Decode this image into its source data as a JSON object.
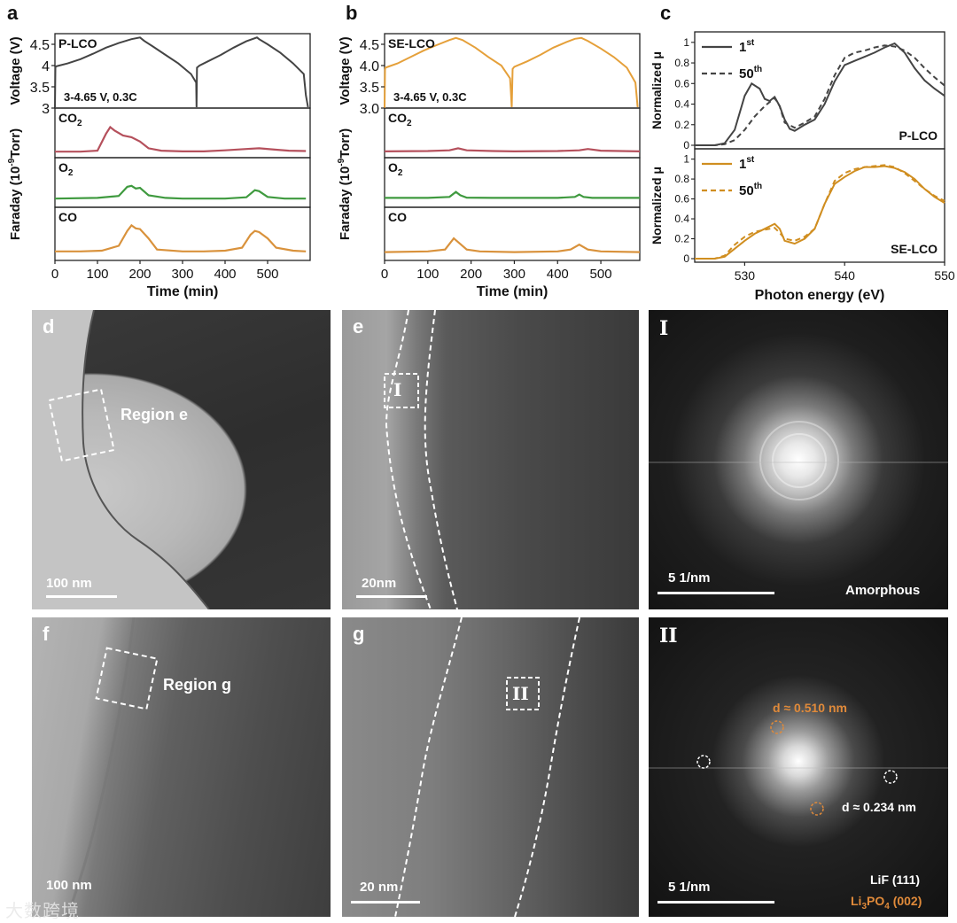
{
  "figure": {
    "panel_labels": [
      "a",
      "b",
      "c",
      "d",
      "e",
      "f",
      "g"
    ],
    "watermark": "大数跨境"
  },
  "colors": {
    "co2": "#b5505c",
    "o2": "#3f9a3f",
    "co": "#d9923c",
    "plco": "#444444",
    "selco": "#e5a03a",
    "xas_se": "#d08e20"
  },
  "chart_data": [
    {
      "id": "a",
      "type": "line",
      "sample_label": "P-LCO",
      "condition": "3-4.65 V, 0.3C",
      "xlabel": "Time (min)",
      "x_ticks": [
        "0",
        "100",
        "200",
        "300",
        "400",
        "500"
      ],
      "xlim": [
        0,
        600
      ],
      "voltage": {
        "ylabel": "Voltage (V)",
        "y_ticks": [
          "4.5",
          "4",
          "3.5",
          "3"
        ],
        "ylim": [
          3.0,
          4.75
        ],
        "x": [
          0,
          1,
          2,
          10,
          30,
          60,
          90,
          120,
          150,
          180,
          200,
          210,
          230,
          260,
          290,
          320,
          332,
          333,
          334,
          340,
          360,
          390,
          420,
          450,
          475,
          480,
          500,
          530,
          560,
          585,
          590,
          595
        ],
        "y": [
          3.0,
          3.95,
          3.98,
          4.0,
          4.05,
          4.15,
          4.28,
          4.42,
          4.53,
          4.62,
          4.66,
          4.58,
          4.45,
          4.25,
          4.05,
          3.8,
          3.6,
          3.02,
          3.95,
          4.0,
          4.1,
          4.25,
          4.42,
          4.57,
          4.66,
          4.62,
          4.5,
          4.3,
          4.05,
          3.8,
          3.3,
          3.02
        ]
      },
      "gas_ylabel": "Faraday (10-9Torr)",
      "series": [
        {
          "name": "CO2",
          "x": [
            0,
            60,
            100,
            120,
            130,
            140,
            160,
            180,
            200,
            220,
            250,
            300,
            350,
            400,
            450,
            480,
            520,
            550,
            590
          ],
          "y": [
            0.02,
            0.02,
            0.05,
            0.55,
            0.75,
            0.65,
            0.5,
            0.45,
            0.32,
            0.12,
            0.05,
            0.03,
            0.03,
            0.06,
            0.1,
            0.12,
            0.08,
            0.05,
            0.04
          ]
        },
        {
          "name": "O2",
          "x": [
            0,
            100,
            150,
            170,
            180,
            190,
            200,
            220,
            260,
            300,
            350,
            400,
            450,
            470,
            480,
            500,
            540,
            590
          ],
          "y": [
            0.1,
            0.12,
            0.18,
            0.45,
            0.48,
            0.4,
            0.42,
            0.2,
            0.12,
            0.1,
            0.1,
            0.1,
            0.14,
            0.35,
            0.32,
            0.15,
            0.1,
            0.1
          ]
        },
        {
          "name": "CO",
          "x": [
            0,
            60,
            110,
            150,
            170,
            180,
            190,
            200,
            220,
            240,
            300,
            350,
            400,
            440,
            460,
            470,
            480,
            500,
            520,
            560,
            590
          ],
          "y": [
            0.1,
            0.1,
            0.12,
            0.25,
            0.65,
            0.8,
            0.72,
            0.7,
            0.45,
            0.15,
            0.1,
            0.1,
            0.12,
            0.2,
            0.55,
            0.65,
            0.62,
            0.45,
            0.2,
            0.12,
            0.1
          ]
        }
      ],
      "series_labels": {
        "CO2": "CO",
        "CO2_sub": "2",
        "O2": "O",
        "O2_sub": "2",
        "CO": "CO"
      }
    },
    {
      "id": "b",
      "type": "line",
      "sample_label": "SE-LCO",
      "condition": "3-4.65 V, 0.3C",
      "xlabel": "Time (min)",
      "x_ticks": [
        "0",
        "100",
        "200",
        "300",
        "400",
        "500"
      ],
      "xlim": [
        0,
        590
      ],
      "voltage": {
        "ylabel": "Voltage (V)",
        "y_ticks": [
          "4.5",
          "4.0",
          "3.5",
          "3.0"
        ],
        "ylim": [
          3.0,
          4.75
        ],
        "x": [
          0,
          1,
          2,
          10,
          30,
          60,
          90,
          120,
          150,
          165,
          180,
          210,
          240,
          270,
          290,
          292,
          294,
          296,
          300,
          330,
          360,
          390,
          420,
          440,
          455,
          470,
          500,
          530,
          560,
          580,
          585
        ],
        "y": [
          3.0,
          3.9,
          3.95,
          3.98,
          4.05,
          4.2,
          4.35,
          4.48,
          4.6,
          4.65,
          4.6,
          4.42,
          4.2,
          4.0,
          3.7,
          3.4,
          3.02,
          3.92,
          3.97,
          4.1,
          4.25,
          4.42,
          4.55,
          4.63,
          4.65,
          4.58,
          4.4,
          4.2,
          3.95,
          3.6,
          3.02
        ]
      },
      "gas_ylabel": "Faraday (10-9Torr)",
      "series": [
        {
          "name": "CO2",
          "x": [
            0,
            100,
            150,
            170,
            190,
            250,
            300,
            400,
            450,
            470,
            500,
            590
          ],
          "y": [
            0.03,
            0.04,
            0.06,
            0.12,
            0.06,
            0.04,
            0.03,
            0.04,
            0.06,
            0.1,
            0.05,
            0.03
          ]
        },
        {
          "name": "O2",
          "x": [
            0,
            100,
            150,
            165,
            175,
            190,
            250,
            300,
            400,
            440,
            450,
            460,
            480,
            590
          ],
          "y": [
            0.12,
            0.12,
            0.15,
            0.3,
            0.2,
            0.13,
            0.12,
            0.12,
            0.12,
            0.15,
            0.22,
            0.15,
            0.12,
            0.12
          ]
        },
        {
          "name": "CO",
          "x": [
            0,
            100,
            140,
            160,
            170,
            190,
            220,
            300,
            400,
            430,
            450,
            470,
            500,
            590
          ],
          "y": [
            0.08,
            0.1,
            0.15,
            0.45,
            0.35,
            0.15,
            0.1,
            0.08,
            0.1,
            0.15,
            0.28,
            0.15,
            0.1,
            0.08
          ]
        }
      ],
      "series_labels": {
        "CO2": "CO",
        "CO2_sub": "2",
        "O2": "O",
        "O2_sub": "2",
        "CO": "CO"
      }
    },
    {
      "id": "c",
      "type": "line",
      "xlabel": "Photon energy (eV)",
      "x_ticks": [
        "530",
        "540",
        "550"
      ],
      "xlim": [
        525,
        550
      ],
      "subplots": [
        {
          "sample_label": "P-LCO",
          "ylabel": "Normalized μ",
          "y_ticks": [
            "1",
            "0.8",
            "0.6",
            "0.4",
            "0.2",
            "0"
          ],
          "ylim": [
            0,
            1.05
          ],
          "legend": [
            {
              "label": "1",
              "sup": "st",
              "style": "solid"
            },
            {
              "label": "50",
              "sup": "th",
              "style": "dashed"
            }
          ],
          "series": [
            {
              "name": "1st",
              "x": [
                525,
                527,
                528,
                529,
                530,
                530.7,
                531.5,
                532,
                532.5,
                533,
                533.5,
                534,
                534.5,
                535,
                536,
                537,
                538,
                539,
                540,
                541,
                542,
                543,
                544,
                545,
                546,
                547,
                548,
                549,
                550
              ],
              "y": [
                0.0,
                0.0,
                0.02,
                0.15,
                0.48,
                0.6,
                0.55,
                0.45,
                0.43,
                0.47,
                0.38,
                0.25,
                0.16,
                0.14,
                0.2,
                0.25,
                0.4,
                0.62,
                0.78,
                0.82,
                0.86,
                0.9,
                0.95,
                0.99,
                0.9,
                0.75,
                0.63,
                0.55,
                0.48
              ]
            },
            {
              "name": "50th",
              "x": [
                525,
                527,
                528,
                529,
                530,
                531,
                532,
                533,
                533.5,
                534,
                535,
                536,
                537,
                538,
                539,
                540,
                541,
                542,
                543,
                544,
                545,
                546,
                547,
                548,
                549,
                550
              ],
              "y": [
                0.0,
                0.0,
                0.01,
                0.05,
                0.15,
                0.28,
                0.38,
                0.46,
                0.38,
                0.22,
                0.17,
                0.22,
                0.28,
                0.45,
                0.68,
                0.85,
                0.9,
                0.92,
                0.95,
                0.97,
                0.96,
                0.92,
                0.85,
                0.75,
                0.66,
                0.58
              ]
            }
          ]
        },
        {
          "sample_label": "SE-LCO",
          "ylabel": "Normalized μ",
          "y_ticks": [
            "1",
            "0.8",
            "0.6",
            "0.4",
            "0.2",
            "0"
          ],
          "ylim": [
            0,
            1.05
          ],
          "legend": [
            {
              "label": "1",
              "sup": "st",
              "style": "solid"
            },
            {
              "label": "50",
              "sup": "th",
              "style": "dashed"
            }
          ],
          "series": [
            {
              "name": "1st",
              "x": [
                525,
                527,
                528,
                529,
                530,
                531,
                532,
                533,
                533.5,
                534,
                535,
                536,
                537,
                538,
                539,
                540,
                541,
                542,
                543,
                544,
                545,
                546,
                547,
                548,
                549,
                550
              ],
              "y": [
                0.0,
                0.0,
                0.02,
                0.1,
                0.18,
                0.25,
                0.3,
                0.35,
                0.3,
                0.18,
                0.15,
                0.2,
                0.3,
                0.55,
                0.75,
                0.82,
                0.88,
                0.92,
                0.92,
                0.93,
                0.91,
                0.87,
                0.8,
                0.7,
                0.62,
                0.56
              ]
            },
            {
              "name": "50th",
              "x": [
                525,
                527,
                528,
                529,
                530,
                531,
                532,
                533,
                533.5,
                534,
                535,
                536,
                537,
                538,
                539,
                540,
                541,
                542,
                543,
                544,
                545,
                546,
                547,
                548,
                549,
                550
              ],
              "y": [
                0.0,
                0.0,
                0.03,
                0.14,
                0.22,
                0.27,
                0.29,
                0.31,
                0.26,
                0.2,
                0.18,
                0.22,
                0.3,
                0.55,
                0.78,
                0.86,
                0.9,
                0.92,
                0.93,
                0.94,
                0.92,
                0.86,
                0.78,
                0.7,
                0.63,
                0.58
              ]
            }
          ]
        }
      ]
    }
  ],
  "micrographs": {
    "d": {
      "label": "d",
      "region_label": "Region e",
      "scale": "100 nm"
    },
    "e": {
      "label": "e",
      "box_label": "I",
      "scale": "20nm"
    },
    "fft1": {
      "label": "I",
      "scale": "5 1/nm",
      "annotation": "Amorphous"
    },
    "f": {
      "label": "f",
      "region_label": "Region g",
      "scale": "100 nm"
    },
    "g": {
      "label": "g",
      "box_label": "II",
      "scale": "20 nm"
    },
    "fft2": {
      "label": "II",
      "scale": "5 1/nm",
      "d1": "d ≈ 0.510 nm",
      "d2": "d ≈ 0.234 nm",
      "phase1": "LiF (111)",
      "phase2_main": "Li",
      "phase2_sub1": "3",
      "phase2_mid": "PO",
      "phase2_sub2": "4",
      "phase2_end": " (002)"
    }
  }
}
